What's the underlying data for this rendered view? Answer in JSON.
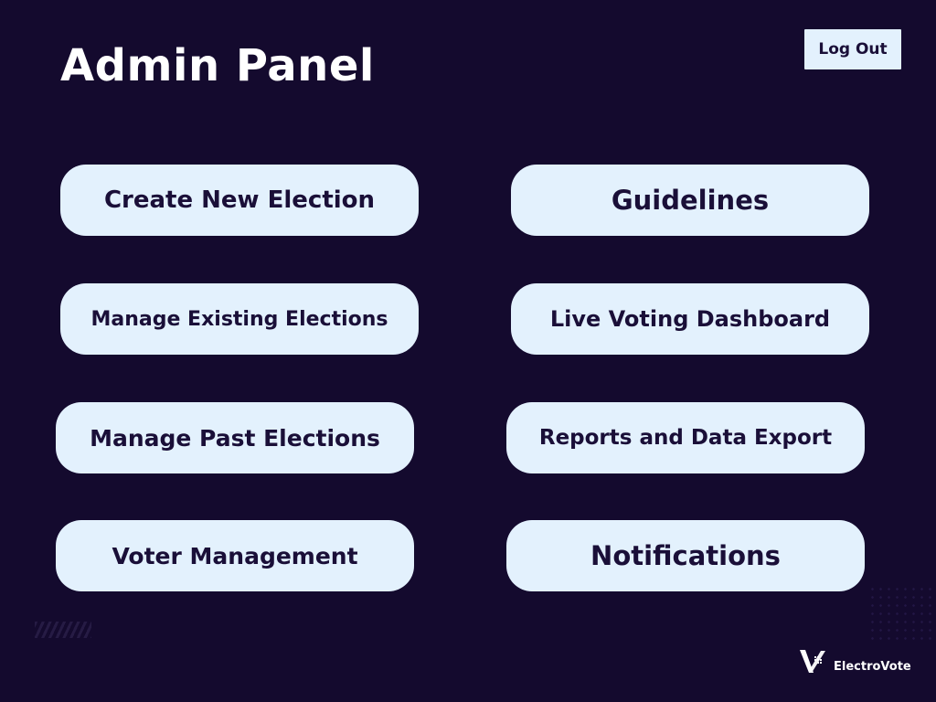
{
  "header": {
    "title": "Admin Panel",
    "logout_label": "Log Out"
  },
  "menu": {
    "left": [
      {
        "label": "Create New Election"
      },
      {
        "label": "Manage Existing Elections"
      },
      {
        "label": "Manage Past Elections"
      },
      {
        "label": "Voter Management"
      }
    ],
    "right": [
      {
        "label": "Guidelines"
      },
      {
        "label": "Live Voting Dashboard"
      },
      {
        "label": "Reports and Data Export"
      },
      {
        "label": "Notifications"
      }
    ]
  },
  "brand": {
    "name": "ElectroVote",
    "icon": "electrovote-logo-icon"
  },
  "colors": {
    "background": "#140a2e",
    "button": "#e3f1fd",
    "button_text": "#1a0f38",
    "title": "#ffffff"
  }
}
